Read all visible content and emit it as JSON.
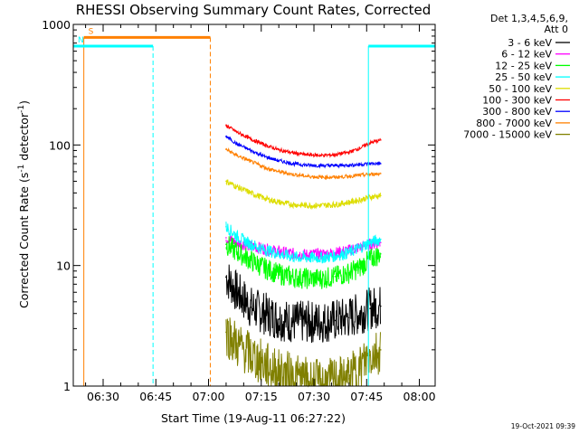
{
  "chart_data": {
    "type": "line",
    "title": "RHESSI Observing Summary Count Rates, Corrected",
    "xlabel": "Start Time (19-Aug-11 06:27:22)",
    "ylabel_main": "Corrected Count Rate (s",
    "ylabel_sup1": "-1",
    "ylabel_mid": " detector",
    "ylabel_sup2": "-1",
    "ylabel_end": ")",
    "y_scale": "log",
    "ylim": [
      1,
      1000
    ],
    "xlim_minutes": [
      381.5,
      484.5
    ],
    "x_ticks": [
      {
        "label": "06:30",
        "minute": 390
      },
      {
        "label": "06:45",
        "minute": 405
      },
      {
        "label": "07:00",
        "minute": 420
      },
      {
        "label": "07:15",
        "minute": 435
      },
      {
        "label": "07:30",
        "minute": 450
      },
      {
        "label": "07:45",
        "minute": 465
      },
      {
        "label": "08:00",
        "minute": 480
      }
    ],
    "y_ticks": [
      {
        "label": "1",
        "value": 1
      },
      {
        "label": "10",
        "value": 10
      },
      {
        "label": "100",
        "value": 100
      },
      {
        "label": "1000",
        "value": 1000
      }
    ],
    "legend_header": [
      "Det 1,3,4,5,6,9,",
      "Att 0"
    ],
    "legend_position": "right",
    "series": [
      {
        "name": "3 - 6 keV",
        "color": "#000000",
        "x": [
          425,
          428,
          432,
          436,
          440,
          444,
          448,
          452,
          456,
          460,
          463,
          466,
          469
        ],
        "values": [
          8,
          6,
          4.5,
          4,
          3.6,
          3.4,
          3.4,
          3.4,
          3.5,
          3.7,
          4,
          4.4,
          4.6
        ],
        "noise": 0.18
      },
      {
        "name": "6 - 12 keV",
        "color": "#ff00ff",
        "x": [
          425,
          428,
          432,
          436,
          440,
          444,
          448,
          452,
          456,
          460,
          463,
          466,
          469
        ],
        "values": [
          17,
          15.5,
          14.5,
          13.7,
          13,
          12.5,
          12.3,
          12.4,
          12.7,
          13.4,
          14.2,
          15,
          15.5
        ],
        "noise": 0.05
      },
      {
        "name": "12 - 25 keV",
        "color": "#00ff00",
        "x": [
          425,
          428,
          432,
          436,
          440,
          444,
          448,
          452,
          456,
          460,
          463,
          466,
          469
        ],
        "values": [
          15,
          13,
          11,
          9.5,
          8.5,
          8,
          7.8,
          7.8,
          8.1,
          8.7,
          9.6,
          11.2,
          12.5
        ],
        "noise": 0.09
      },
      {
        "name": "25 - 50 keV",
        "color": "#00ffff",
        "x": [
          425,
          428,
          432,
          436,
          440,
          444,
          448,
          452,
          456,
          460,
          463,
          466,
          469
        ],
        "values": [
          21,
          17.5,
          15,
          13.5,
          12.5,
          11.8,
          11.6,
          11.6,
          12,
          12.8,
          14,
          15.5,
          16.5
        ],
        "noise": 0.05
      },
      {
        "name": "50 - 100 keV",
        "color": "#dddd00",
        "x": [
          425,
          428,
          432,
          436,
          440,
          444,
          448,
          452,
          456,
          460,
          463,
          466,
          469
        ],
        "values": [
          50,
          45,
          40,
          36,
          33.5,
          32,
          31.5,
          31.5,
          32,
          33.5,
          35,
          37,
          38
        ],
        "noise": 0.025
      },
      {
        "name": "100 - 300 keV",
        "color": "#ff0000",
        "x": [
          425,
          428,
          432,
          436,
          440,
          444,
          448,
          452,
          456,
          460,
          463,
          466,
          469
        ],
        "values": [
          145,
          128,
          112,
          100,
          91,
          86,
          83,
          82,
          83,
          87,
          94,
          104,
          110
        ],
        "noise": 0.015
      },
      {
        "name": "300 - 800 keV",
        "color": "#0000ff",
        "x": [
          425,
          428,
          432,
          436,
          440,
          444,
          448,
          452,
          456,
          460,
          463,
          466,
          469
        ],
        "values": [
          118,
          102,
          90,
          80,
          74,
          70,
          68,
          67.5,
          67.5,
          68,
          69,
          70,
          70
        ],
        "noise": 0.015
      },
      {
        "name": "800 - 7000 keV",
        "color": "#ff8000",
        "x": [
          425,
          428,
          432,
          436,
          440,
          444,
          448,
          452,
          456,
          460,
          463,
          466,
          469
        ],
        "values": [
          92,
          82,
          73,
          65,
          60,
          57,
          55,
          54,
          54,
          55,
          56,
          57,
          58
        ],
        "noise": 0.015
      },
      {
        "name": "7000 - 15000 keV",
        "color": "#808000",
        "x": [
          425,
          428,
          432,
          436,
          440,
          444,
          448,
          452,
          456,
          460,
          463,
          466,
          469
        ],
        "values": [
          2.8,
          2.2,
          1.8,
          1.5,
          1.3,
          1.2,
          1.1,
          1.05,
          1.1,
          1.15,
          1.4,
          1.8,
          2
        ],
        "noise": 0.2
      }
    ],
    "markers": [
      {
        "label": "S",
        "color": "#ff8000",
        "start": 384.5,
        "end": 420.5,
        "level": 780
      },
      {
        "label": "N",
        "color": "#00ffff",
        "start": 381.5,
        "end": 404.2,
        "level": 660
      },
      {
        "label": "",
        "color": "#00ffff",
        "start": 465.5,
        "end": 484.5,
        "level": 660
      }
    ],
    "timestamp": "19-Oct-2021 09:39"
  }
}
